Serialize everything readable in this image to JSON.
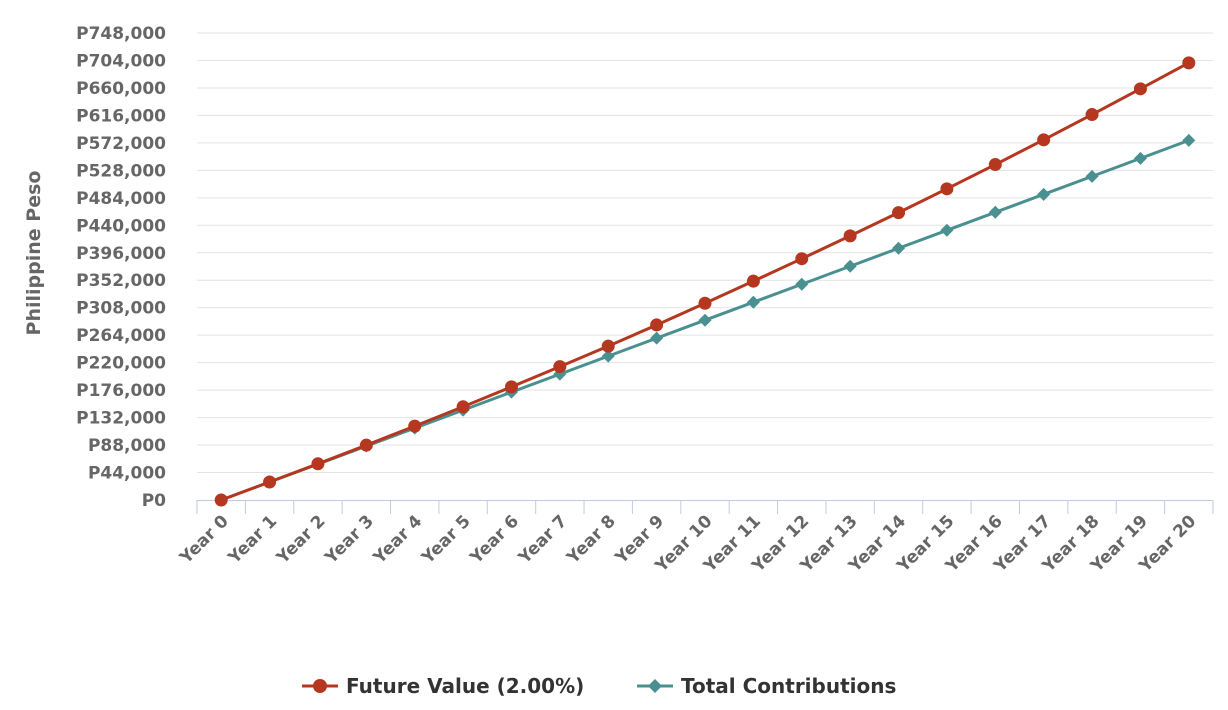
{
  "chart_data": {
    "type": "line",
    "title": "",
    "xlabel": "",
    "ylabel": "Philippine Peso",
    "categories": [
      "Year 0",
      "Year 1",
      "Year 2",
      "Year 3",
      "Year 4",
      "Year 5",
      "Year 6",
      "Year 7",
      "Year 8",
      "Year 9",
      "Year 10",
      "Year 11",
      "Year 12",
      "Year 13",
      "Year 14",
      "Year 15",
      "Year 16",
      "Year 17",
      "Year 18",
      "Year 19",
      "Year 20"
    ],
    "y_ticks": [
      "P0",
      "P44,000",
      "P88,000",
      "P132,000",
      "P176,000",
      "P220,000",
      "P264,000",
      "P308,000",
      "P352,000",
      "P396,000",
      "P440,000",
      "P484,000",
      "P528,000",
      "P572,000",
      "P616,000",
      "P660,000",
      "P704,000",
      "P748,000"
    ],
    "ylim": [
      0,
      748000
    ],
    "grid": true,
    "legend_position": "bottom-center",
    "series": [
      {
        "name": "Future Value (2.00%)",
        "color": "#b5371f",
        "marker": "circle",
        "values": [
          0,
          28800,
          58000,
          87800,
          118300,
          149300,
          181200,
          213600,
          246500,
          280400,
          315100,
          350500,
          386500,
          423000,
          460300,
          498400,
          537300,
          576900,
          617400,
          658600,
          700200
        ]
      },
      {
        "name": "Total Contributions",
        "color": "#4a9090",
        "marker": "diamond",
        "values": [
          0,
          28800,
          57600,
          86400,
          115200,
          144000,
          172800,
          201600,
          230400,
          259200,
          288000,
          316800,
          345600,
          374400,
          403200,
          432000,
          460800,
          489600,
          518400,
          547200,
          576000
        ]
      }
    ]
  }
}
